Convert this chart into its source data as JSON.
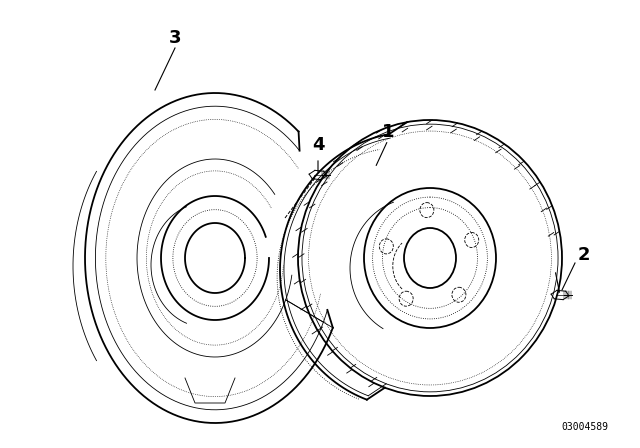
{
  "background_color": "#ffffff",
  "line_color": "#000000",
  "fig_width": 6.4,
  "fig_height": 4.48,
  "dpi": 100,
  "watermark": "03004589",
  "lw_main": 1.3,
  "lw_med": 0.9,
  "lw_thin": 0.6,
  "lw_dot": 0.5
}
